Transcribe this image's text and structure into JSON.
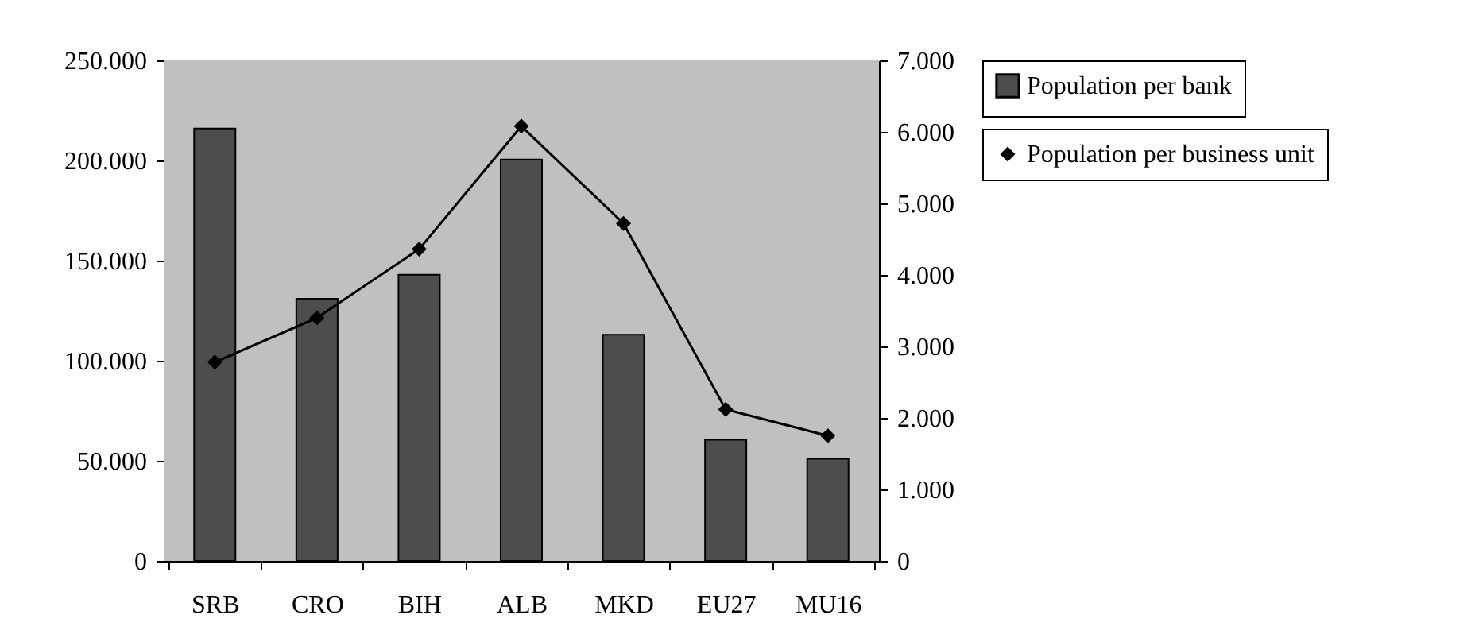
{
  "chart_data": {
    "type": "bar",
    "categories": [
      "SRB",
      "CRO",
      "BIH",
      "ALB",
      "MKD",
      "EU27",
      "MU16"
    ],
    "series": [
      {
        "name": "Population per bank",
        "color": "#4d4d4d",
        "values": [
          216000,
          131000,
          143000,
          200500,
          113000,
          60500,
          51000
        ]
      },
      {
        "name": "Population per business unit",
        "type": "line",
        "axis": "y2",
        "color": "#000000",
        "marker": "diamond",
        "values": [
          2780,
          3400,
          4360,
          6080,
          4720,
          2120,
          1750
        ]
      }
    ],
    "ylim": [
      0,
      250000
    ],
    "yticks": [
      {
        "value": 0,
        "label": "0"
      },
      {
        "value": 50000,
        "label": "50.000"
      },
      {
        "value": 100000,
        "label": "100.000"
      },
      {
        "value": 150000,
        "label": "150.000"
      },
      {
        "value": 200000,
        "label": "200.000"
      },
      {
        "value": 250000,
        "label": "250.000"
      }
    ],
    "y2lim": [
      0,
      7000
    ],
    "y2ticks": [
      {
        "value": 0,
        "label": "0"
      },
      {
        "value": 1000,
        "label": "1.000"
      },
      {
        "value": 2000,
        "label": "2.000"
      },
      {
        "value": 3000,
        "label": "3.000"
      },
      {
        "value": 4000,
        "label": "4.000"
      },
      {
        "value": 5000,
        "label": "5.000"
      },
      {
        "value": 6000,
        "label": "6.000"
      },
      {
        "value": 7000,
        "label": "7.000"
      }
    ],
    "legend": "right"
  }
}
